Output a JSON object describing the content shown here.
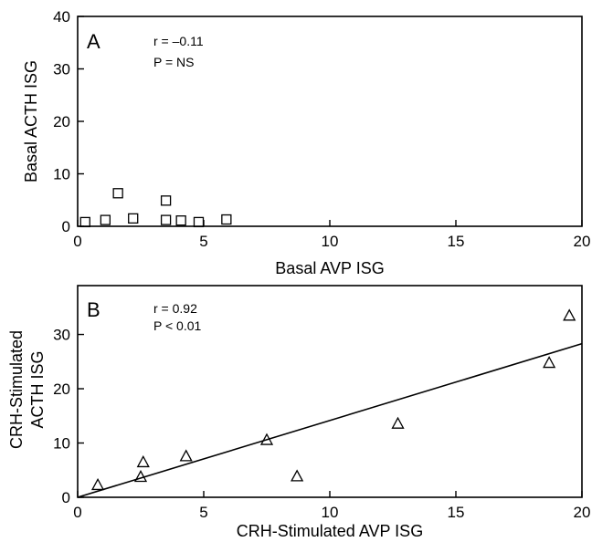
{
  "chart_data": [
    {
      "panel": "A",
      "type": "scatter",
      "marker": "square",
      "xlabel": "Basal AVP ISG",
      "ylabel": "Basal ACTH ISG",
      "xlim": [
        0,
        20
      ],
      "ylim": [
        0,
        40
      ],
      "xticks": [
        0,
        5,
        10,
        15,
        20
      ],
      "yticks": [
        0,
        10,
        20,
        30,
        40
      ],
      "annotations": [
        "r = –0.11",
        "P = NS"
      ],
      "points": [
        {
          "x": 0.3,
          "y": 0.8
        },
        {
          "x": 1.1,
          "y": 1.2
        },
        {
          "x": 1.6,
          "y": 6.3
        },
        {
          "x": 2.2,
          "y": 1.5
        },
        {
          "x": 3.5,
          "y": 4.9
        },
        {
          "x": 3.5,
          "y": 1.2
        },
        {
          "x": 4.1,
          "y": 1.1
        },
        {
          "x": 4.8,
          "y": 0.8
        },
        {
          "x": 5.9,
          "y": 1.3
        }
      ]
    },
    {
      "panel": "B",
      "type": "scatter",
      "marker": "triangle",
      "xlabel": "CRH-Stimulated AVP ISG",
      "ylabel_lines": [
        "CRH-Stimulated",
        "ACTH ISG"
      ],
      "xlim": [
        0,
        20
      ],
      "ylim": [
        0,
        39
      ],
      "xticks": [
        0,
        5,
        10,
        15,
        20
      ],
      "yticks": [
        0,
        10,
        20,
        30
      ],
      "annotations": [
        "r = 0.92",
        "P < 0.01"
      ],
      "fit_line": {
        "x": [
          0,
          20
        ],
        "y": [
          0,
          28.3
        ]
      },
      "points": [
        {
          "x": 0.8,
          "y": 2.3
        },
        {
          "x": 2.5,
          "y": 3.8
        },
        {
          "x": 2.6,
          "y": 6.5
        },
        {
          "x": 4.3,
          "y": 7.6
        },
        {
          "x": 7.5,
          "y": 10.6
        },
        {
          "x": 8.7,
          "y": 3.9
        },
        {
          "x": 12.7,
          "y": 13.6
        },
        {
          "x": 18.7,
          "y": 24.8
        },
        {
          "x": 19.5,
          "y": 33.5
        }
      ]
    }
  ]
}
